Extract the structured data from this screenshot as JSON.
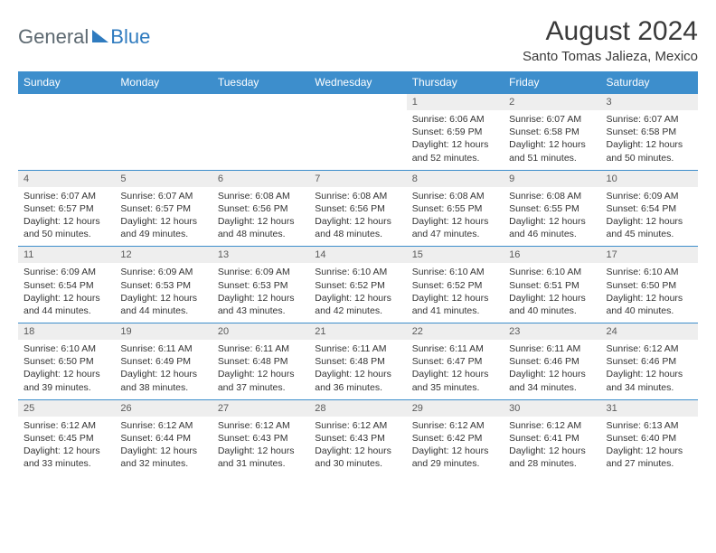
{
  "logo": {
    "text1": "General",
    "text2": "Blue"
  },
  "title": "August 2024",
  "location": "Santo Tomas Jalieza, Mexico",
  "colors": {
    "header_bg": "#3d8ecc",
    "header_text": "#ffffff",
    "daynum_bg": "#eeeeee",
    "border": "#3d8ecc",
    "logo_gray": "#5e6a72",
    "logo_blue": "#2f7bbf"
  },
  "typography": {
    "title_fontsize": 30,
    "location_fontsize": 15,
    "dayhead_fontsize": 12,
    "daynum_fontsize": 11,
    "detail_fontsize": 10.5
  },
  "day_headers": [
    "Sunday",
    "Monday",
    "Tuesday",
    "Wednesday",
    "Thursday",
    "Friday",
    "Saturday"
  ],
  "weeks": [
    [
      null,
      null,
      null,
      null,
      {
        "n": "1",
        "sr": "6:06 AM",
        "ss": "6:59 PM",
        "dl": "12 hours and 52 minutes."
      },
      {
        "n": "2",
        "sr": "6:07 AM",
        "ss": "6:58 PM",
        "dl": "12 hours and 51 minutes."
      },
      {
        "n": "3",
        "sr": "6:07 AM",
        "ss": "6:58 PM",
        "dl": "12 hours and 50 minutes."
      }
    ],
    [
      {
        "n": "4",
        "sr": "6:07 AM",
        "ss": "6:57 PM",
        "dl": "12 hours and 50 minutes."
      },
      {
        "n": "5",
        "sr": "6:07 AM",
        "ss": "6:57 PM",
        "dl": "12 hours and 49 minutes."
      },
      {
        "n": "6",
        "sr": "6:08 AM",
        "ss": "6:56 PM",
        "dl": "12 hours and 48 minutes."
      },
      {
        "n": "7",
        "sr": "6:08 AM",
        "ss": "6:56 PM",
        "dl": "12 hours and 48 minutes."
      },
      {
        "n": "8",
        "sr": "6:08 AM",
        "ss": "6:55 PM",
        "dl": "12 hours and 47 minutes."
      },
      {
        "n": "9",
        "sr": "6:08 AM",
        "ss": "6:55 PM",
        "dl": "12 hours and 46 minutes."
      },
      {
        "n": "10",
        "sr": "6:09 AM",
        "ss": "6:54 PM",
        "dl": "12 hours and 45 minutes."
      }
    ],
    [
      {
        "n": "11",
        "sr": "6:09 AM",
        "ss": "6:54 PM",
        "dl": "12 hours and 44 minutes."
      },
      {
        "n": "12",
        "sr": "6:09 AM",
        "ss": "6:53 PM",
        "dl": "12 hours and 44 minutes."
      },
      {
        "n": "13",
        "sr": "6:09 AM",
        "ss": "6:53 PM",
        "dl": "12 hours and 43 minutes."
      },
      {
        "n": "14",
        "sr": "6:10 AM",
        "ss": "6:52 PM",
        "dl": "12 hours and 42 minutes."
      },
      {
        "n": "15",
        "sr": "6:10 AM",
        "ss": "6:52 PM",
        "dl": "12 hours and 41 minutes."
      },
      {
        "n": "16",
        "sr": "6:10 AM",
        "ss": "6:51 PM",
        "dl": "12 hours and 40 minutes."
      },
      {
        "n": "17",
        "sr": "6:10 AM",
        "ss": "6:50 PM",
        "dl": "12 hours and 40 minutes."
      }
    ],
    [
      {
        "n": "18",
        "sr": "6:10 AM",
        "ss": "6:50 PM",
        "dl": "12 hours and 39 minutes."
      },
      {
        "n": "19",
        "sr": "6:11 AM",
        "ss": "6:49 PM",
        "dl": "12 hours and 38 minutes."
      },
      {
        "n": "20",
        "sr": "6:11 AM",
        "ss": "6:48 PM",
        "dl": "12 hours and 37 minutes."
      },
      {
        "n": "21",
        "sr": "6:11 AM",
        "ss": "6:48 PM",
        "dl": "12 hours and 36 minutes."
      },
      {
        "n": "22",
        "sr": "6:11 AM",
        "ss": "6:47 PM",
        "dl": "12 hours and 35 minutes."
      },
      {
        "n": "23",
        "sr": "6:11 AM",
        "ss": "6:46 PM",
        "dl": "12 hours and 34 minutes."
      },
      {
        "n": "24",
        "sr": "6:12 AM",
        "ss": "6:46 PM",
        "dl": "12 hours and 34 minutes."
      }
    ],
    [
      {
        "n": "25",
        "sr": "6:12 AM",
        "ss": "6:45 PM",
        "dl": "12 hours and 33 minutes."
      },
      {
        "n": "26",
        "sr": "6:12 AM",
        "ss": "6:44 PM",
        "dl": "12 hours and 32 minutes."
      },
      {
        "n": "27",
        "sr": "6:12 AM",
        "ss": "6:43 PM",
        "dl": "12 hours and 31 minutes."
      },
      {
        "n": "28",
        "sr": "6:12 AM",
        "ss": "6:43 PM",
        "dl": "12 hours and 30 minutes."
      },
      {
        "n": "29",
        "sr": "6:12 AM",
        "ss": "6:42 PM",
        "dl": "12 hours and 29 minutes."
      },
      {
        "n": "30",
        "sr": "6:12 AM",
        "ss": "6:41 PM",
        "dl": "12 hours and 28 minutes."
      },
      {
        "n": "31",
        "sr": "6:13 AM",
        "ss": "6:40 PM",
        "dl": "12 hours and 27 minutes."
      }
    ]
  ],
  "labels": {
    "sunrise": "Sunrise:",
    "sunset": "Sunset:",
    "daylight": "Daylight:"
  }
}
